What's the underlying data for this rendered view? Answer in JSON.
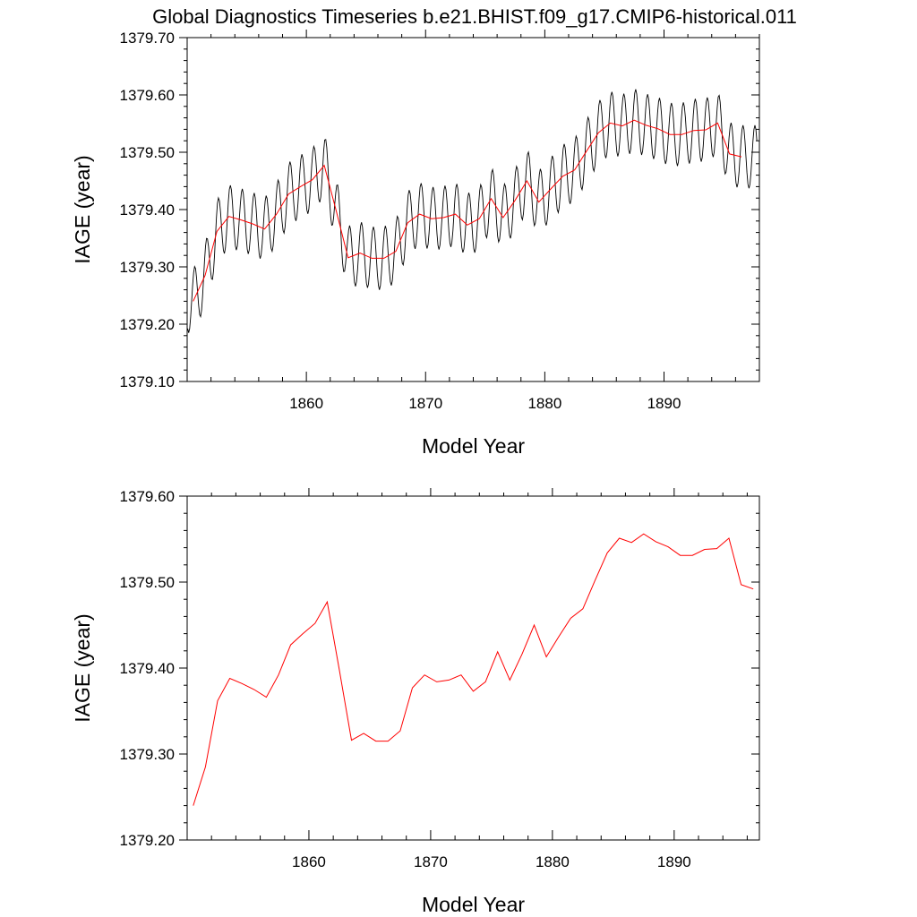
{
  "title": "Global Diagnostics Timeseries b.e21.BHIST.f09_g17.CMIP6-historical.011",
  "chart_data": [
    {
      "type": "line",
      "xlabel": "Model Year",
      "ylabel": "IAGE (year)",
      "xlim": [
        1850,
        1898
      ],
      "ylim": [
        1379.1,
        1379.7
      ],
      "x_ticks": [
        "1860",
        "1870",
        "1880",
        "1890"
      ],
      "x_tick_values": [
        1860,
        1870,
        1880,
        1890
      ],
      "y_ticks": [
        "1379.10",
        "1379.20",
        "1379.30",
        "1379.40",
        "1379.50",
        "1379.60",
        "1379.70"
      ],
      "y_tick_values": [
        1379.1,
        1379.2,
        1379.3,
        1379.4,
        1379.5,
        1379.6,
        1379.7
      ],
      "series": [
        {
          "style": "monthly",
          "color": "#000000"
        },
        {
          "style": "annual",
          "color": "#ff0000"
        }
      ]
    },
    {
      "type": "line",
      "xlabel": "Model Year",
      "ylabel": "IAGE (year)",
      "xlim": [
        1850,
        1897
      ],
      "ylim": [
        1379.2,
        1379.6
      ],
      "x_ticks": [
        "1860",
        "1870",
        "1880",
        "1890"
      ],
      "x_tick_values": [
        1860,
        1870,
        1880,
        1890
      ],
      "y_ticks": [
        "1379.20",
        "1379.30",
        "1379.40",
        "1379.50",
        "1379.60"
      ],
      "y_tick_values": [
        1379.2,
        1379.3,
        1379.4,
        1379.5,
        1379.6
      ],
      "series": [
        {
          "style": "annual",
          "color": "#ff0000"
        }
      ]
    }
  ],
  "annual_mean": {
    "x": [
      1850.5,
      1851.5,
      1852.5,
      1853.5,
      1854.5,
      1855.5,
      1856.5,
      1857.5,
      1858.5,
      1859.5,
      1860.5,
      1861.5,
      1862.5,
      1863.5,
      1864.5,
      1865.5,
      1866.5,
      1867.5,
      1868.5,
      1869.5,
      1870.5,
      1871.5,
      1872.5,
      1873.5,
      1874.5,
      1875.5,
      1876.5,
      1877.5,
      1878.5,
      1879.5,
      1880.5,
      1881.5,
      1882.5,
      1883.5,
      1884.5,
      1885.5,
      1886.5,
      1887.5,
      1888.5,
      1889.5,
      1890.5,
      1891.5,
      1892.5,
      1893.5,
      1894.5,
      1895.5,
      1896.5
    ],
    "y": [
      1379.24,
      1379.285,
      1379.362,
      1379.388,
      1379.382,
      1379.375,
      1379.366,
      1379.392,
      1379.427,
      1379.44,
      1379.452,
      1379.477,
      1379.398,
      1379.316,
      1379.324,
      1379.315,
      1379.315,
      1379.327,
      1379.377,
      1379.392,
      1379.384,
      1379.386,
      1379.392,
      1379.373,
      1379.384,
      1379.419,
      1379.386,
      1379.416,
      1379.45,
      1379.413,
      1379.436,
      1379.458,
      1379.469,
      1379.502,
      1379.534,
      1379.551,
      1379.546,
      1379.556,
      1379.547,
      1379.541,
      1379.531,
      1379.531,
      1379.538,
      1379.539,
      1379.551,
      1379.497,
      1379.492
    ]
  },
  "monthly_cycle": {
    "amplitude": 0.055,
    "peak_month": 7
  }
}
